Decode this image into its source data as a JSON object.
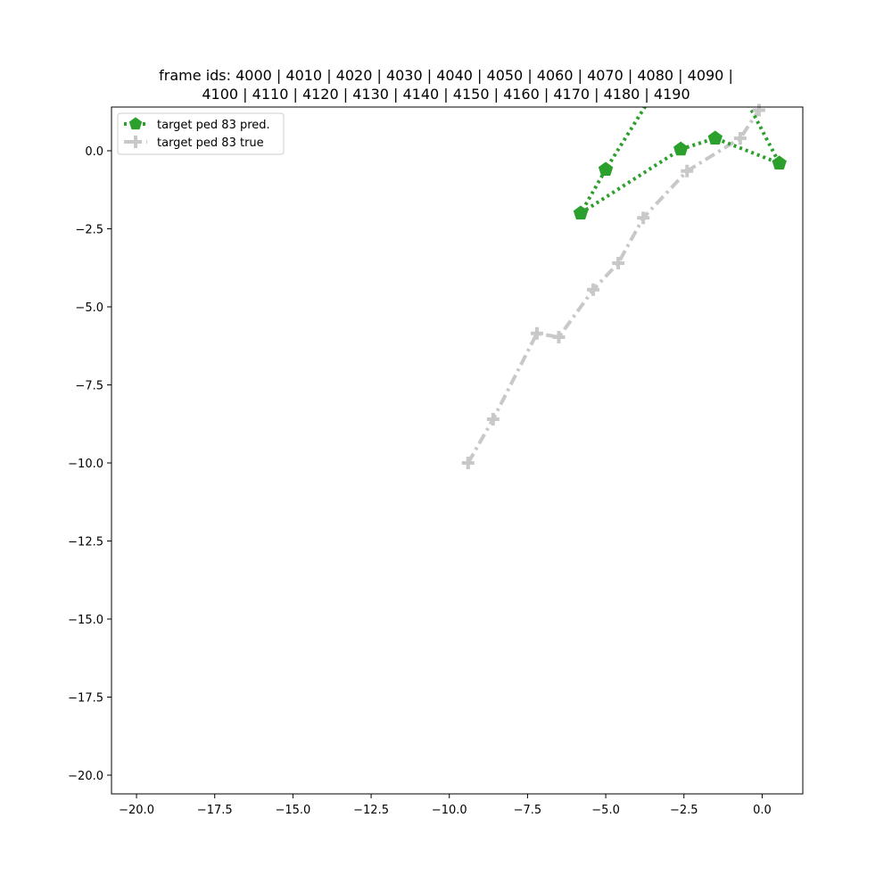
{
  "chart_data": {
    "type": "line",
    "title_lines": [
      "frame ids: 4000 | 4010 | 4020 | 4030 | 4040 | 4050 | 4060 | 4070 | 4080 | 4090 |",
      "4100 | 4110 | 4120 | 4130 | 4140 | 4150 | 4160 | 4170 | 4180 | 4190"
    ],
    "xlabel": "",
    "ylabel": "",
    "xlim": [
      -20.8,
      1.3
    ],
    "ylim": [
      -20.6,
      1.4
    ],
    "x_ticks": [
      -20.0,
      -17.5,
      -15.0,
      -12.5,
      -10.0,
      -7.5,
      -5.0,
      -2.5,
      0.0
    ],
    "x_tick_labels": [
      "−20.0",
      "−17.5",
      "−15.0",
      "−12.5",
      "−10.0",
      "−7.5",
      "−5.0",
      "−2.5",
      "0.0"
    ],
    "y_ticks": [
      0.0,
      -2.5,
      -5.0,
      -7.5,
      -10.0,
      -12.5,
      -15.0,
      -17.5,
      -20.0
    ],
    "y_tick_labels": [
      "0.0",
      "−2.5",
      "−5.0",
      "−7.5",
      "−10.0",
      "−12.5",
      "−15.0",
      "−17.5",
      "−20.0"
    ],
    "grid": false,
    "legend_position": "top-left",
    "series": [
      {
        "name": "target ped 83 pred.",
        "color": "#2ca02c",
        "line_style": "dotted",
        "marker": "pentagon",
        "points": [
          {
            "x": -5.8,
            "y": -2.0
          },
          {
            "x": -2.6,
            "y": 0.05
          },
          {
            "x": -1.5,
            "y": 0.4
          },
          {
            "x": 0.55,
            "y": -0.4
          },
          {
            "x": -0.6,
            "y": 1.8
          },
          {
            "x": -3.5,
            "y": 1.8
          },
          {
            "x": -5.0,
            "y": -0.6
          },
          {
            "x": -5.8,
            "y": -2.0
          }
        ],
        "marker_points": [
          {
            "x": -5.8,
            "y": -2.0
          },
          {
            "x": -5.0,
            "y": -0.6
          },
          {
            "x": -2.6,
            "y": 0.05
          },
          {
            "x": -1.5,
            "y": 0.4
          },
          {
            "x": 0.55,
            "y": -0.4
          }
        ]
      },
      {
        "name": "target ped 83 true",
        "color": "#c8c8c8",
        "line_style": "dashdot",
        "marker": "plus",
        "points": [
          {
            "x": -9.4,
            "y": -10.0
          },
          {
            "x": -8.6,
            "y": -8.6
          },
          {
            "x": -7.2,
            "y": -5.85
          },
          {
            "x": -6.5,
            "y": -5.97
          },
          {
            "x": -5.4,
            "y": -4.45
          },
          {
            "x": -4.6,
            "y": -3.6
          },
          {
            "x": -3.8,
            "y": -2.15
          },
          {
            "x": -2.4,
            "y": -0.65
          },
          {
            "x": -0.7,
            "y": 0.4
          },
          {
            "x": -0.1,
            "y": 1.3
          }
        ]
      }
    ]
  }
}
